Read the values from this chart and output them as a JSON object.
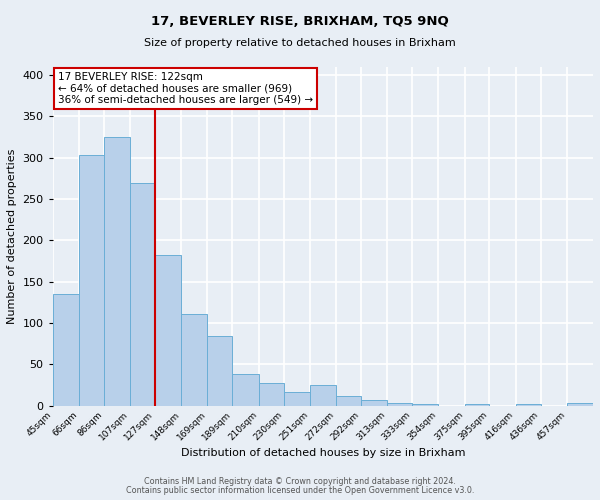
{
  "title": "17, BEVERLEY RISE, BRIXHAM, TQ5 9NQ",
  "subtitle": "Size of property relative to detached houses in Brixham",
  "xlabel": "Distribution of detached houses by size in Brixham",
  "ylabel": "Number of detached properties",
  "bin_labels": [
    "45sqm",
    "66sqm",
    "86sqm",
    "107sqm",
    "127sqm",
    "148sqm",
    "169sqm",
    "189sqm",
    "210sqm",
    "230sqm",
    "251sqm",
    "272sqm",
    "292sqm",
    "313sqm",
    "333sqm",
    "354sqm",
    "375sqm",
    "395sqm",
    "416sqm",
    "436sqm",
    "457sqm"
  ],
  "bin_edges": [
    45,
    66,
    86,
    107,
    127,
    148,
    169,
    189,
    210,
    230,
    251,
    272,
    292,
    313,
    333,
    354,
    375,
    395,
    416,
    436,
    457,
    478
  ],
  "bar_heights": [
    135,
    303,
    325,
    270,
    182,
    111,
    84,
    38,
    27,
    17,
    25,
    11,
    7,
    3,
    2,
    0,
    2,
    0,
    2,
    0,
    3
  ],
  "bar_color": "#b8d0ea",
  "bar_edge_color": "#6aaed6",
  "background_color": "#e8eef5",
  "grid_color": "#ffffff",
  "vline_x": 127,
  "vline_color": "#cc0000",
  "annotation_text": "17 BEVERLEY RISE: 122sqm\n← 64% of detached houses are smaller (969)\n36% of semi-detached houses are larger (549) →",
  "annotation_box_color": "#cc0000",
  "ylim": [
    0,
    410
  ],
  "yticks": [
    0,
    50,
    100,
    150,
    200,
    250,
    300,
    350,
    400
  ],
  "footer1": "Contains HM Land Registry data © Crown copyright and database right 2024.",
  "footer2": "Contains public sector information licensed under the Open Government Licence v3.0."
}
